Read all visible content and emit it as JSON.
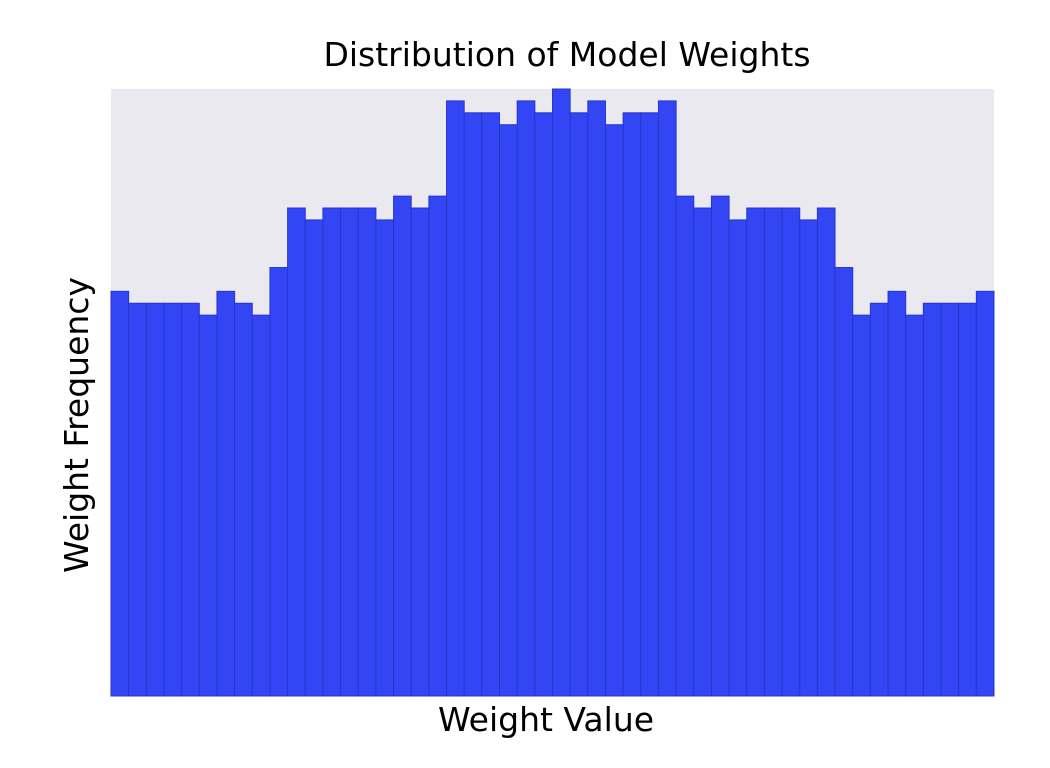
{
  "chart_data": {
    "type": "bar",
    "title": "Distribution of Model Weights",
    "xlabel": "Weight Value",
    "ylabel": "Weight Frequency",
    "bins": 50,
    "values": [
      34,
      33,
      33,
      33,
      33,
      32,
      34,
      33,
      32,
      36,
      41,
      40,
      41,
      41,
      41,
      40,
      42,
      41,
      42,
      50,
      49,
      49,
      48,
      50,
      49,
      51,
      49,
      50,
      48,
      49,
      49,
      50,
      42,
      41,
      42,
      40,
      41,
      41,
      41,
      40,
      41,
      36,
      32,
      33,
      34,
      32,
      33,
      33,
      33,
      34
    ],
    "ylim": [
      0,
      51
    ],
    "grid": false,
    "x_ticks_visible": false,
    "y_ticks_visible": false,
    "colors": {
      "bar_fill": "#3346f5",
      "bar_edge": "#2a34cc",
      "plot_background": "#e9e9ef"
    }
  }
}
